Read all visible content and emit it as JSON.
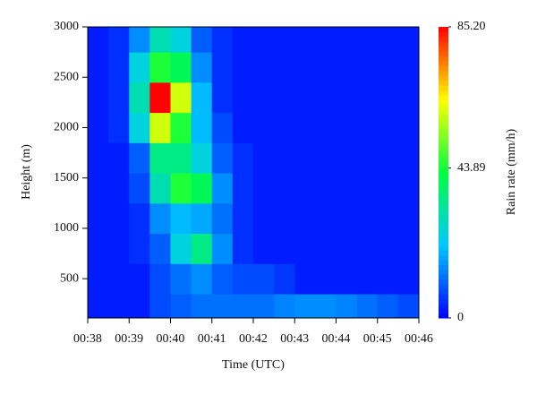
{
  "chart_data": {
    "type": "heatmap",
    "x_label": "Time (UTC)",
    "y_label": "Height (m)",
    "colorbar_label": "Rain rate (mm/h)",
    "x": [
      38.25,
      38.75,
      39.25,
      39.75,
      40.25,
      40.75,
      41.25,
      41.75,
      42.25,
      42.75,
      43.25,
      43.75,
      44.25,
      44.75,
      45.25,
      45.75
    ],
    "y": [
      200,
      500,
      800,
      1100,
      1400,
      1700,
      2000,
      2300,
      2600,
      2900
    ],
    "z": [
      [
        3,
        3,
        3,
        8,
        10,
        12,
        12,
        12,
        12,
        14,
        15,
        15,
        14,
        12,
        10,
        8
      ],
      [
        3,
        3,
        3,
        8,
        12,
        15,
        10,
        8,
        8,
        6,
        3,
        3,
        3,
        3,
        3,
        3
      ],
      [
        3,
        3,
        5,
        10,
        25,
        35,
        15,
        5,
        3,
        3,
        3,
        3,
        3,
        3,
        3,
        3
      ],
      [
        3,
        3,
        5,
        15,
        20,
        18,
        12,
        5,
        3,
        3,
        3,
        3,
        3,
        3,
        3,
        3
      ],
      [
        3,
        3,
        8,
        30,
        45,
        40,
        15,
        5,
        3,
        3,
        3,
        3,
        3,
        3,
        3,
        3
      ],
      [
        3,
        3,
        10,
        35,
        35,
        25,
        10,
        5,
        3,
        3,
        3,
        3,
        3,
        3,
        3,
        3
      ],
      [
        3,
        5,
        25,
        60,
        45,
        20,
        8,
        3,
        3,
        3,
        3,
        3,
        3,
        3,
        3,
        3
      ],
      [
        3,
        5,
        30,
        85,
        60,
        20,
        5,
        3,
        3,
        3,
        3,
        3,
        3,
        3,
        3,
        3
      ],
      [
        3,
        5,
        25,
        45,
        40,
        15,
        5,
        3,
        3,
        3,
        3,
        3,
        3,
        3,
        3,
        3
      ],
      [
        3,
        5,
        15,
        30,
        25,
        10,
        5,
        3,
        3,
        3,
        3,
        3,
        3,
        3,
        3,
        3
      ]
    ],
    "xlim": [
      38,
      46
    ],
    "xticks": [
      {
        "value": 38,
        "label": "00:38"
      },
      {
        "value": 39,
        "label": "00:39"
      },
      {
        "value": 40,
        "label": "00:40"
      },
      {
        "value": 41,
        "label": "00:41"
      },
      {
        "value": 42,
        "label": "00:42"
      },
      {
        "value": 43,
        "label": "00:43"
      },
      {
        "value": 44,
        "label": "00:44"
      },
      {
        "value": 45,
        "label": "00:45"
      },
      {
        "value": 46,
        "label": "00:46"
      }
    ],
    "ylim": [
      110,
      3000
    ],
    "yticks": [
      500,
      1000,
      1500,
      2000,
      2500,
      3000
    ],
    "zlim": [
      0,
      85.2
    ],
    "zticks": [
      0,
      43.89,
      {
        "value": 85.2,
        "label": "85.20"
      }
    ],
    "colormap": [
      "#0000ff",
      "#00c8ff",
      "#00ff40",
      "#ffff00",
      "#ff0000"
    ]
  }
}
